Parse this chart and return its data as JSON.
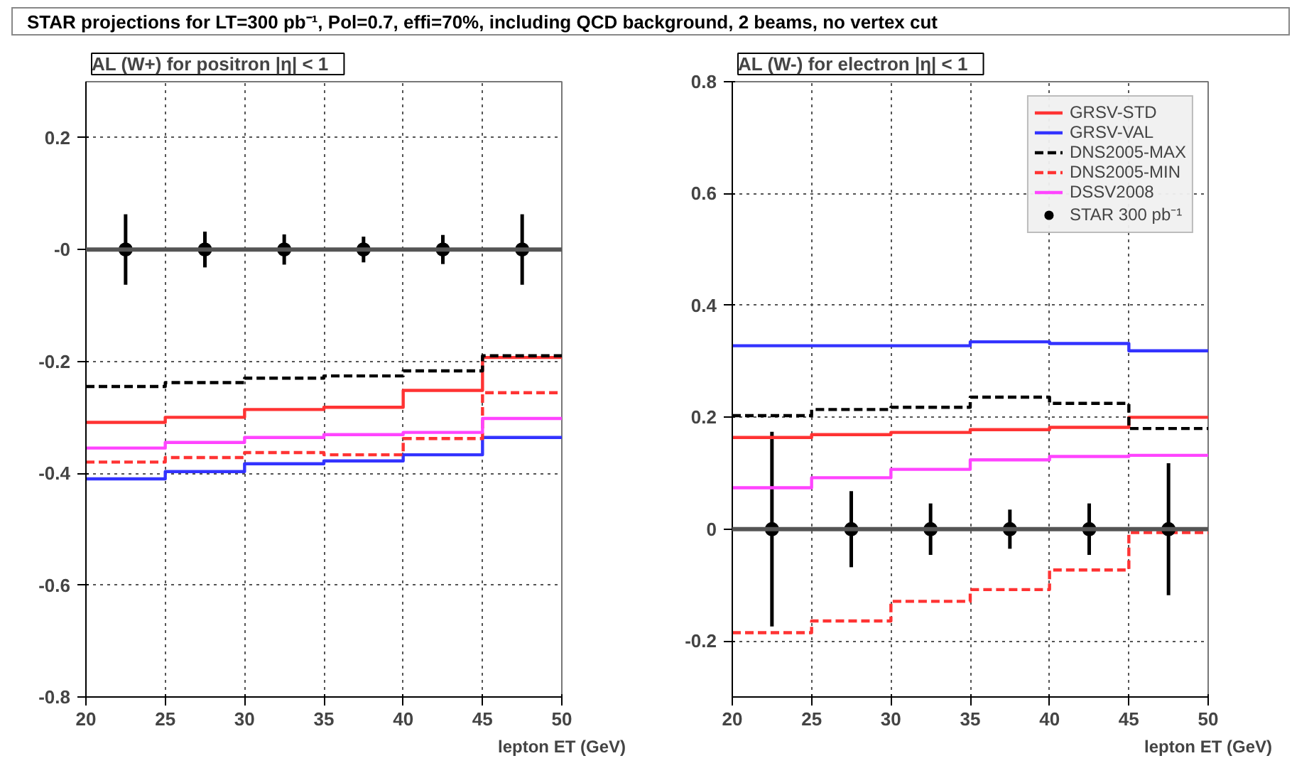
{
  "chart_data": [
    {
      "type": "step",
      "title": "AL (W+)   for positron  |η| < 1",
      "xlabel": "lepton ET (GeV)",
      "annotations": [
        "STAR projections for LT=300 pb⁻¹,  Pol=0.7, effi=70%,  including QCD background, 2 beams, no vertex cut"
      ],
      "xlim": [
        20,
        50
      ],
      "xticks": [
        20,
        25,
        30,
        35,
        40,
        45,
        50
      ],
      "ylim": [
        -0.8,
        0.3
      ],
      "yticks": [
        -0.8,
        -0.6,
        -0.4,
        -0.2,
        {
          "value": 0,
          "label": "-0"
        },
        0.2
      ],
      "grid": true,
      "ref_lines": [
        {
          "axis": "y",
          "value": 0,
          "color": "#555555"
        }
      ],
      "series": [
        {
          "color": "#ff3333",
          "line_style": "solid",
          "x": [
            20,
            25,
            30,
            35,
            40,
            45,
            50
          ],
          "values": [
            -0.309,
            -0.3,
            -0.286,
            -0.282,
            -0.252,
            -0.193,
            -0.193
          ]
        },
        {
          "color": "#3333ff",
          "line_style": "solid",
          "x": [
            20,
            25,
            30,
            35,
            40,
            45,
            50
          ],
          "values": [
            -0.41,
            -0.397,
            -0.383,
            -0.378,
            -0.367,
            -0.336,
            -0.336
          ]
        },
        {
          "color": "#000000",
          "line_style": "dashed",
          "x": [
            20,
            25,
            30,
            35,
            40,
            45,
            50
          ],
          "values": [
            -0.245,
            -0.238,
            -0.23,
            -0.226,
            -0.217,
            -0.19,
            -0.19
          ]
        },
        {
          "color": "#ff3333",
          "line_style": "dashed",
          "x": [
            20,
            25,
            30,
            35,
            40,
            45,
            50
          ],
          "values": [
            -0.38,
            -0.372,
            -0.363,
            -0.367,
            -0.338,
            -0.256,
            -0.256
          ]
        },
        {
          "color": "#ff44ff",
          "line_style": "solid",
          "x": [
            20,
            25,
            30,
            35,
            40,
            45,
            50
          ],
          "values": [
            -0.355,
            -0.345,
            -0.336,
            -0.331,
            -0.327,
            -0.302,
            -0.302
          ]
        },
        {
          "type": "scatter",
          "marker": "circle",
          "color": "#000000",
          "x": [
            22.5,
            27.5,
            32.5,
            37.5,
            42.5,
            47.5
          ],
          "values": [
            0,
            0,
            0,
            0,
            0,
            0
          ],
          "errors": [
            0.063,
            0.032,
            0.027,
            0.023,
            0.026,
            0.063
          ]
        }
      ]
    },
    {
      "type": "step",
      "title": "AL (W-)   for electron  |η| < 1",
      "xlabel": "lepton ET (GeV)",
      "xlim": [
        20,
        50
      ],
      "xticks": [
        20,
        25,
        30,
        35,
        40,
        45,
        50
      ],
      "ylim": [
        -0.3,
        0.8
      ],
      "yticks": [
        -0.2,
        0,
        0.2,
        0.4,
        0.6,
        0.8
      ],
      "grid": true,
      "legend": "top right",
      "ref_lines": [
        {
          "axis": "y",
          "value": 0,
          "color": "#555555"
        }
      ],
      "series": [
        {
          "name": "GRSV-STD",
          "color": "#ff3333",
          "line_style": "solid",
          "x": [
            20,
            25,
            30,
            35,
            40,
            45,
            50
          ],
          "values": [
            0.164,
            0.169,
            0.173,
            0.178,
            0.182,
            0.2,
            0.2
          ]
        },
        {
          "name": "GRSV-VAL",
          "color": "#3333ff",
          "line_style": "solid",
          "x": [
            20,
            25,
            30,
            35,
            40,
            45,
            50
          ],
          "values": [
            0.328,
            0.328,
            0.328,
            0.335,
            0.332,
            0.319,
            0.319
          ]
        },
        {
          "name": "DNS2005-MAX",
          "color": "#000000",
          "line_style": "dashed",
          "x": [
            20,
            25,
            30,
            35,
            40,
            45,
            50
          ],
          "values": [
            0.203,
            0.214,
            0.218,
            0.236,
            0.225,
            0.18,
            0.18
          ]
        },
        {
          "name": "DNS2005-MIN",
          "color": "#ff3333",
          "line_style": "dashed",
          "x": [
            20,
            25,
            30,
            35,
            40,
            45,
            50
          ],
          "values": [
            -0.185,
            -0.164,
            -0.129,
            -0.108,
            -0.073,
            -0.006,
            -0.006
          ]
        },
        {
          "name": "DSSV2008",
          "color": "#ff44ff",
          "line_style": "solid",
          "x": [
            20,
            25,
            30,
            35,
            40,
            45,
            50
          ],
          "values": [
            0.074,
            0.092,
            0.107,
            0.124,
            0.13,
            0.132,
            0.132
          ]
        },
        {
          "name": "STAR 300 pb⁻¹",
          "type": "scatter",
          "marker": "circle",
          "color": "#000000",
          "x": [
            22.5,
            27.5,
            32.5,
            37.5,
            42.5,
            47.5
          ],
          "values": [
            0,
            0,
            0,
            0,
            0,
            0
          ],
          "errors": [
            0.174,
            0.068,
            0.046,
            0.035,
            0.046,
            0.118
          ]
        }
      ]
    }
  ]
}
